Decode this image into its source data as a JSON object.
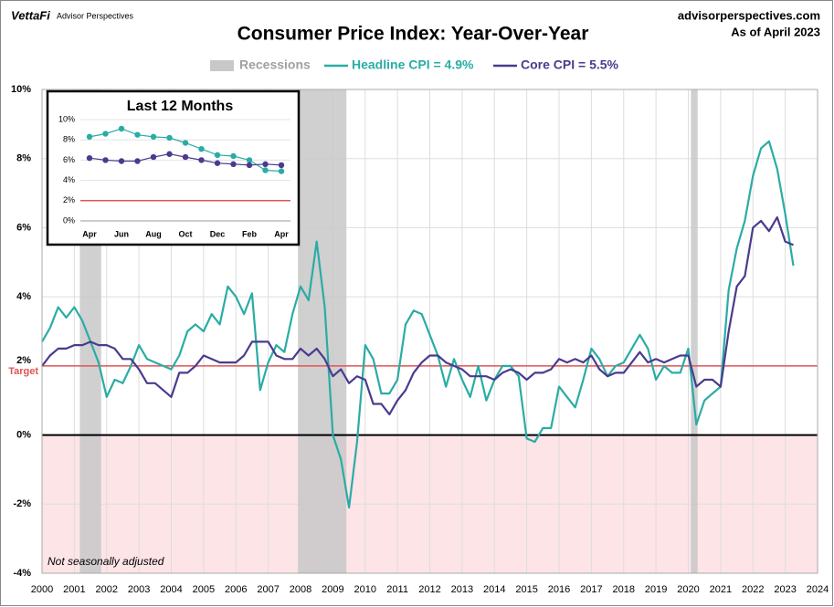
{
  "header": {
    "brand": "VettaFi",
    "brand_sub": "Advisor Perspectives",
    "site": "advisorperspectives.com",
    "as_of": "As of April 2023"
  },
  "chart_data": [
    {
      "type": "line",
      "title": "Consumer Price Index: Year-Over-Year",
      "xlim": [
        2000,
        2024
      ],
      "xticks": [
        2000,
        2001,
        2002,
        2003,
        2004,
        2005,
        2006,
        2007,
        2008,
        2009,
        2010,
        2011,
        2012,
        2013,
        2014,
        2015,
        2016,
        2017,
        2018,
        2019,
        2020,
        2021,
        2022,
        2023,
        2024
      ],
      "ylim": [
        -4,
        10
      ],
      "yticks": [
        {
          "value": -4,
          "label": "-4%"
        },
        {
          "value": -2,
          "label": "-2%"
        },
        {
          "value": 0,
          "label": "0%"
        },
        {
          "value": 2,
          "label": "2%"
        },
        {
          "value": 4,
          "label": "4%"
        },
        {
          "value": 6,
          "label": "6%"
        },
        {
          "value": 8,
          "label": "8%"
        },
        {
          "value": 10,
          "label": "10%"
        }
      ],
      "grid": true,
      "recessions_name": "Recessions",
      "recession_color": "#c8c8c8",
      "recessions": [
        [
          2001.17,
          2001.83
        ],
        [
          2007.92,
          2009.42
        ],
        [
          2020.08,
          2020.29
        ]
      ],
      "target": {
        "value": 2,
        "label": "Target",
        "color": "#e05555"
      },
      "negative_fill": "#fde4e7",
      "annotation": "Not seasonally adjusted",
      "x": [
        2000,
        2000.25,
        2000.5,
        2000.75,
        2001,
        2001.25,
        2001.5,
        2001.75,
        2002,
        2002.25,
        2002.5,
        2002.75,
        2003,
        2003.25,
        2003.5,
        2003.75,
        2004,
        2004.25,
        2004.5,
        2004.75,
        2005,
        2005.25,
        2005.5,
        2005.75,
        2006,
        2006.25,
        2006.5,
        2006.75,
        2007,
        2007.25,
        2007.5,
        2007.75,
        2008,
        2008.25,
        2008.5,
        2008.75,
        2009,
        2009.25,
        2009.5,
        2009.75,
        2010,
        2010.25,
        2010.5,
        2010.75,
        2011,
        2011.25,
        2011.5,
        2011.75,
        2012,
        2012.25,
        2012.5,
        2012.75,
        2013,
        2013.25,
        2013.5,
        2013.75,
        2014,
        2014.25,
        2014.5,
        2014.75,
        2015,
        2015.25,
        2015.5,
        2015.75,
        2016,
        2016.25,
        2016.5,
        2016.75,
        2017,
        2017.25,
        2017.5,
        2017.75,
        2018,
        2018.25,
        2018.5,
        2018.75,
        2019,
        2019.25,
        2019.5,
        2019.75,
        2020,
        2020.25,
        2020.5,
        2020.75,
        2021,
        2021.25,
        2021.5,
        2021.75,
        2022,
        2022.25,
        2022.5,
        2022.75,
        2023,
        2023.25
      ],
      "series": [
        {
          "name": "Headline CPI = 4.9%",
          "color": "#2aaca5",
          "values": [
            2.7,
            3.1,
            3.7,
            3.4,
            3.7,
            3.3,
            2.7,
            2.1,
            1.1,
            1.6,
            1.5,
            2.0,
            2.6,
            2.2,
            2.1,
            2.0,
            1.9,
            2.3,
            3.0,
            3.2,
            3.0,
            3.5,
            3.2,
            4.3,
            4.0,
            3.5,
            4.1,
            1.3,
            2.1,
            2.6,
            2.4,
            3.5,
            4.3,
            3.9,
            5.6,
            3.7,
            0.0,
            -0.7,
            -2.1,
            -0.2,
            2.6,
            2.2,
            1.2,
            1.2,
            1.6,
            3.2,
            3.6,
            3.5,
            2.9,
            2.3,
            1.4,
            2.2,
            1.6,
            1.1,
            2.0,
            1.0,
            1.6,
            2.0,
            2.0,
            1.7,
            -0.1,
            -0.2,
            0.2,
            0.2,
            1.4,
            1.1,
            0.8,
            1.6,
            2.5,
            2.2,
            1.7,
            2.0,
            2.1,
            2.5,
            2.9,
            2.5,
            1.6,
            2.0,
            1.8,
            1.8,
            2.5,
            0.3,
            1.0,
            1.2,
            1.4,
            4.2,
            5.4,
            6.2,
            7.5,
            8.3,
            8.5,
            7.7,
            6.4,
            4.9
          ]
        },
        {
          "name": "Core CPI =  5.5%",
          "color": "#4b3a8f",
          "values": [
            2.0,
            2.3,
            2.5,
            2.5,
            2.6,
            2.6,
            2.7,
            2.6,
            2.6,
            2.5,
            2.2,
            2.2,
            1.9,
            1.5,
            1.5,
            1.3,
            1.1,
            1.8,
            1.8,
            2.0,
            2.3,
            2.2,
            2.1,
            2.1,
            2.1,
            2.3,
            2.7,
            2.7,
            2.7,
            2.3,
            2.2,
            2.2,
            2.5,
            2.3,
            2.5,
            2.2,
            1.7,
            1.9,
            1.5,
            1.7,
            1.6,
            0.9,
            0.9,
            0.6,
            1.0,
            1.3,
            1.8,
            2.1,
            2.3,
            2.3,
            2.1,
            2.0,
            1.9,
            1.7,
            1.7,
            1.7,
            1.6,
            1.8,
            1.9,
            1.8,
            1.6,
            1.8,
            1.8,
            1.9,
            2.2,
            2.1,
            2.2,
            2.1,
            2.3,
            1.9,
            1.7,
            1.8,
            1.8,
            2.1,
            2.4,
            2.1,
            2.2,
            2.1,
            2.2,
            2.3,
            2.3,
            1.4,
            1.6,
            1.6,
            1.4,
            3.0,
            4.3,
            4.6,
            6.0,
            6.2,
            5.9,
            6.3,
            5.6,
            5.5
          ]
        }
      ]
    },
    {
      "type": "line",
      "title": "Last 12 Months",
      "categories": [
        "Apr",
        null,
        "Jun",
        null,
        "Aug",
        null,
        "Oct",
        null,
        "Dec",
        null,
        "Feb",
        null,
        "Apr"
      ],
      "ylim": [
        0,
        10
      ],
      "yticks": [
        {
          "value": 0,
          "label": "0%"
        },
        {
          "value": 2,
          "label": "2%"
        },
        {
          "value": 4,
          "label": "4%"
        },
        {
          "value": 6,
          "label": "6%"
        },
        {
          "value": 8,
          "label": "8%"
        },
        {
          "value": 10,
          "label": "10%"
        }
      ],
      "grid": true,
      "target": {
        "value": 2,
        "color": "#e05555"
      },
      "series": [
        {
          "color": "#2aaca5",
          "values": [
            8.3,
            8.6,
            9.1,
            8.5,
            8.3,
            8.2,
            7.7,
            7.1,
            6.5,
            6.4,
            6.0,
            5.0,
            4.9
          ]
        },
        {
          "color": "#4b3a8f",
          "values": [
            6.2,
            6.0,
            5.9,
            5.9,
            6.3,
            6.6,
            6.3,
            6.0,
            5.7,
            5.6,
            5.5,
            5.6,
            5.5
          ]
        }
      ]
    }
  ]
}
